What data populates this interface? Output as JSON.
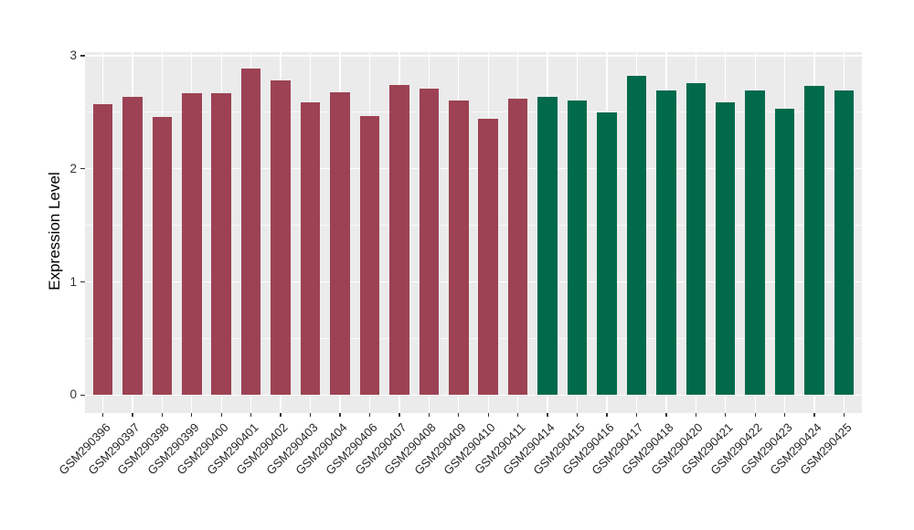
{
  "chart_data": {
    "type": "bar",
    "title": "",
    "xlabel": "",
    "ylabel": "Expression Level",
    "ylim": [
      -0.15,
      3.04
    ],
    "yticks": [
      0,
      1,
      2,
      3
    ],
    "minor_yticks": [
      0.5,
      1.5,
      2.5
    ],
    "grid": "grey panel with white major/minor gridlines (ggplot style)",
    "legend_position": "none",
    "panel_bg": "#EBEBEB",
    "gridline_color": "#FFFFFF",
    "tick_text_color": "#333333",
    "axis_title_color": "#000000",
    "group_colors": {
      "group1": "#9C4254",
      "group2": "#006A4B"
    },
    "categories": [
      "GSM290396",
      "GSM290397",
      "GSM290398",
      "GSM290399",
      "GSM290400",
      "GSM290401",
      "GSM290402",
      "GSM290403",
      "GSM290404",
      "GSM290406",
      "GSM290407",
      "GSM290408",
      "GSM290409",
      "GSM290410",
      "GSM290411",
      "GSM290414",
      "GSM290415",
      "GSM290416",
      "GSM290417",
      "GSM290418",
      "GSM290420",
      "GSM290421",
      "GSM290422",
      "GSM290423",
      "GSM290424",
      "GSM290425"
    ],
    "values": [
      2.57,
      2.64,
      2.46,
      2.67,
      2.67,
      2.89,
      2.78,
      2.59,
      2.68,
      2.47,
      2.74,
      2.71,
      2.6,
      2.44,
      2.62,
      2.64,
      2.6,
      2.5,
      2.82,
      2.69,
      2.76,
      2.59,
      2.69,
      2.53,
      2.73,
      2.69
    ],
    "bar_groups": [
      "group1",
      "group1",
      "group1",
      "group1",
      "group1",
      "group1",
      "group1",
      "group1",
      "group1",
      "group1",
      "group1",
      "group1",
      "group1",
      "group1",
      "group1",
      "group2",
      "group2",
      "group2",
      "group2",
      "group2",
      "group2",
      "group2",
      "group2",
      "group2",
      "group2",
      "group2"
    ]
  }
}
